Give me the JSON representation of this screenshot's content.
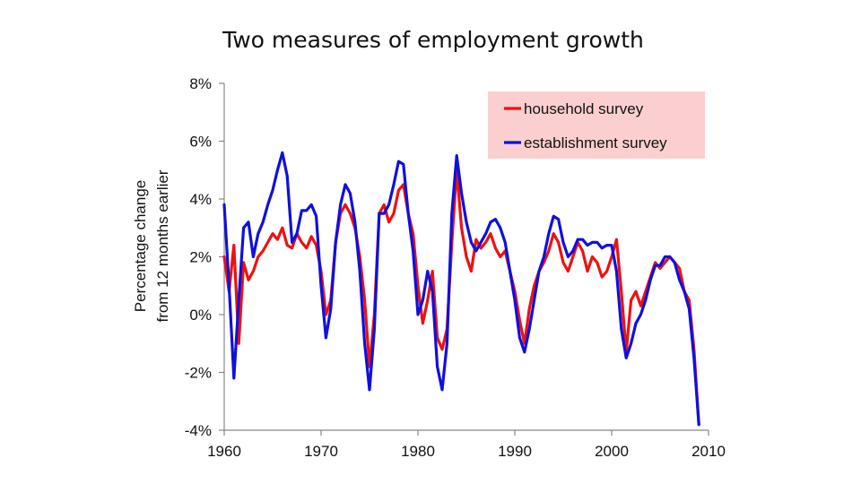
{
  "chart_data": {
    "type": "line",
    "title": "Two measures of employment growth",
    "xlabel": "",
    "ylabel": "Percentage change from 12 months earlier",
    "ylabel_lines": [
      "Percentage change",
      "from 12 months earlier"
    ],
    "xlim": [
      1960,
      2010
    ],
    "ylim": [
      -4,
      8
    ],
    "x_ticks": [
      1960,
      1970,
      1980,
      1990,
      2000,
      2010
    ],
    "x_tick_labels": [
      "1960",
      "1970",
      "1980",
      "1990",
      "2000",
      "2010"
    ],
    "y_ticks": [
      8,
      6,
      4,
      2,
      0,
      -2,
      -4
    ],
    "y_tick_labels": [
      "8%",
      "6%",
      "4%",
      "2%",
      "0%",
      "-2%",
      "-4%"
    ],
    "grid": false,
    "legend": {
      "position": "top-right",
      "background": "#fbcfcf"
    },
    "series": [
      {
        "name": "household survey",
        "color": "#ee1111",
        "x": [
          1960,
          1960.5,
          1961,
          1961.5,
          1962,
          1962.5,
          1963,
          1963.5,
          1964,
          1964.5,
          1965,
          1965.5,
          1966,
          1966.5,
          1967,
          1967.5,
          1968,
          1968.5,
          1969,
          1969.5,
          1970,
          1970.5,
          1971,
          1971.5,
          1972,
          1972.5,
          1973,
          1973.5,
          1974,
          1974.5,
          1975,
          1975.5,
          1976,
          1976.5,
          1977,
          1977.5,
          1978,
          1978.5,
          1979,
          1979.5,
          1980,
          1980.5,
          1981,
          1981.5,
          1982,
          1982.5,
          1983,
          1983.5,
          1984,
          1984.5,
          1985,
          1985.5,
          1986,
          1986.5,
          1987,
          1987.5,
          1988,
          1988.5,
          1989,
          1989.5,
          1990,
          1990.5,
          1991,
          1991.5,
          1992,
          1992.5,
          1993,
          1993.5,
          1994,
          1994.5,
          1995,
          1995.5,
          1996,
          1996.5,
          1997,
          1997.5,
          1998,
          1998.5,
          1999,
          1999.5,
          2000,
          2000.5,
          2001,
          2001.5,
          2002,
          2002.5,
          2003,
          2003.5,
          2004,
          2004.5,
          2005,
          2005.5,
          2006,
          2006.5,
          2007,
          2007.5,
          2008,
          2008.5,
          2009
        ],
        "values": [
          2.0,
          0.8,
          2.4,
          -1.0,
          1.8,
          1.2,
          1.5,
          2.0,
          2.2,
          2.5,
          2.8,
          2.6,
          3.0,
          2.4,
          2.3,
          2.8,
          2.5,
          2.3,
          2.7,
          2.4,
          1.5,
          0.0,
          0.5,
          2.5,
          3.5,
          3.8,
          3.5,
          3.0,
          2.0,
          0.5,
          -1.8,
          0.0,
          3.5,
          3.8,
          3.2,
          3.5,
          4.3,
          4.5,
          3.5,
          2.8,
          1.0,
          -0.3,
          0.5,
          1.5,
          -0.8,
          -1.2,
          -0.5,
          2.5,
          5.0,
          3.0,
          2.0,
          1.5,
          2.6,
          2.3,
          2.5,
          2.8,
          2.3,
          2.0,
          2.2,
          1.5,
          0.8,
          -0.2,
          -1.0,
          0.2,
          1.0,
          1.5,
          1.8,
          2.2,
          2.8,
          2.5,
          1.8,
          1.5,
          2.0,
          2.5,
          2.2,
          1.5,
          2.0,
          1.8,
          1.3,
          1.5,
          2.0,
          2.6,
          0.8,
          -1.3,
          0.5,
          0.8,
          0.3,
          0.8,
          1.3,
          1.8,
          1.6,
          1.8,
          2.0,
          1.8,
          1.6,
          0.8,
          0.5,
          -1.2,
          -3.8
        ]
      },
      {
        "name": "establishment survey",
        "color": "#1010dd",
        "x": [
          1960,
          1960.5,
          1961,
          1961.5,
          1962,
          1962.5,
          1963,
          1963.5,
          1964,
          1964.5,
          1965,
          1965.5,
          1966,
          1966.5,
          1967,
          1967.5,
          1968,
          1968.5,
          1969,
          1969.5,
          1970,
          1970.5,
          1971,
          1971.5,
          1972,
          1972.5,
          1973,
          1973.5,
          1974,
          1974.5,
          1975,
          1975.5,
          1976,
          1976.5,
          1977,
          1977.5,
          1978,
          1978.5,
          1979,
          1979.5,
          1980,
          1980.5,
          1981,
          1981.5,
          1982,
          1982.5,
          1983,
          1983.5,
          1984,
          1984.5,
          1985,
          1985.5,
          1986,
          1986.5,
          1987,
          1987.5,
          1988,
          1988.5,
          1989,
          1989.5,
          1990,
          1990.5,
          1991,
          1991.5,
          1992,
          1992.5,
          1993,
          1993.5,
          1994,
          1994.5,
          1995,
          1995.5,
          1996,
          1996.5,
          1997,
          1997.5,
          1998,
          1998.5,
          1999,
          1999.5,
          2000,
          2000.5,
          2001,
          2001.5,
          2002,
          2002.5,
          2003,
          2003.5,
          2004,
          2004.5,
          2005,
          2005.5,
          2006,
          2006.5,
          2007,
          2007.5,
          2008,
          2008.5,
          2009
        ],
        "values": [
          3.8,
          1.0,
          -2.2,
          0.5,
          3.0,
          3.2,
          2.0,
          2.8,
          3.2,
          3.8,
          4.3,
          5.0,
          5.6,
          4.8,
          2.5,
          2.8,
          3.6,
          3.6,
          3.8,
          3.4,
          1.0,
          -0.8,
          0.2,
          2.5,
          3.8,
          4.5,
          4.2,
          3.2,
          1.5,
          -1.0,
          -2.6,
          -0.5,
          3.5,
          3.5,
          3.8,
          4.5,
          5.3,
          5.2,
          3.5,
          2.2,
          0.0,
          0.5,
          1.5,
          0.8,
          -1.8,
          -2.6,
          -1.0,
          3.5,
          5.5,
          4.2,
          3.2,
          2.5,
          2.2,
          2.5,
          2.8,
          3.2,
          3.3,
          3.0,
          2.5,
          1.5,
          0.5,
          -0.8,
          -1.3,
          -0.5,
          0.5,
          1.5,
          2.0,
          2.8,
          3.4,
          3.3,
          2.5,
          2.0,
          2.2,
          2.6,
          2.6,
          2.4,
          2.5,
          2.5,
          2.3,
          2.4,
          2.4,
          1.5,
          -0.5,
          -1.5,
          -1.0,
          -0.3,
          0.0,
          0.5,
          1.2,
          1.7,
          1.7,
          2.0,
          2.0,
          1.8,
          1.2,
          0.8,
          0.2,
          -1.5,
          -3.8
        ]
      }
    ]
  }
}
